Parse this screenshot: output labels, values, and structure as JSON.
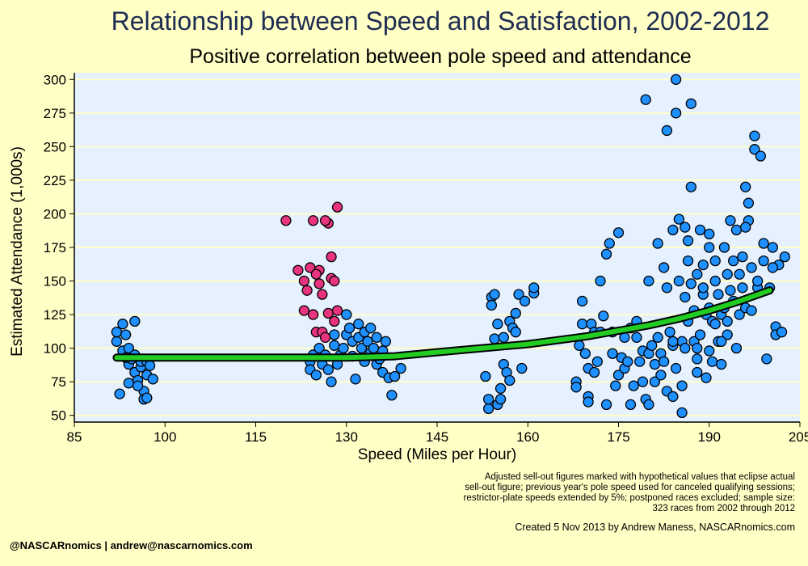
{
  "title": "Relationship between Speed and Satisfaction, 2002-2012",
  "subtitle": "Positive correlation between pole speed and attendance",
  "footer": {
    "note_lines": [
      "Adjusted sell-out figures marked with hypothetical values that eclipse actual",
      "sell-out figure; previous year's pole speed used for canceled qualifying sessions;",
      "restrictor-plate speeds extended by 5%; postponed races excluded; sample size:",
      "323 races from 2002 through 2012"
    ],
    "credit": "Created  5 Nov 2013 by Andrew Maness, NASCARnomics.com",
    "handle": "@NASCARnomics | andrew@nascarnomics.com"
  },
  "chart_data": {
    "type": "scatter",
    "xlabel": "Speed (Miles per Hour)",
    "ylabel": "Estimated Attendance (1,000s)",
    "xlim": [
      85,
      205
    ],
    "ylim": [
      45,
      305
    ],
    "x_ticks": [
      85,
      100,
      115,
      130,
      145,
      160,
      175,
      190,
      205
    ],
    "y_ticks": [
      50,
      75,
      100,
      125,
      150,
      175,
      200,
      225,
      250,
      275,
      300
    ],
    "grid": true,
    "colors": {
      "plot_bg": "#E6F1FF",
      "gridline": "#FFFFC6",
      "actual_point": "#1E90FF",
      "adjusted_point": "#E8337F",
      "trend": "#22CC22"
    },
    "series": [
      {
        "style": "actual",
        "points": [
          [
            92,
            105
          ],
          [
            92,
            112
          ],
          [
            92.5,
            66
          ],
          [
            93,
            118
          ],
          [
            93,
            98
          ],
          [
            93.5,
            110
          ],
          [
            94,
            100
          ],
          [
            94,
            88
          ],
          [
            94,
            74
          ],
          [
            94.5,
            92
          ],
          [
            95,
            120
          ],
          [
            95,
            95
          ],
          [
            95,
            82
          ],
          [
            95.5,
            76
          ],
          [
            96,
            86
          ],
          [
            96,
            90
          ],
          [
            96.5,
            68
          ],
          [
            96.5,
            62
          ],
          [
            97,
            80
          ],
          [
            97,
            63
          ],
          [
            97,
            90
          ],
          [
            97.5,
            87
          ],
          [
            98,
            77
          ],
          [
            93.5,
            93
          ],
          [
            95.5,
            72
          ],
          [
            124,
            90
          ],
          [
            124,
            84
          ],
          [
            124.5,
            95
          ],
          [
            125,
            80
          ],
          [
            125.5,
            100
          ],
          [
            126,
            88
          ],
          [
            126.5,
            95
          ],
          [
            127,
            84
          ],
          [
            127.5,
            75
          ],
          [
            128,
            102
          ],
          [
            128,
            110
          ],
          [
            128.5,
            88
          ],
          [
            129,
            95
          ],
          [
            129.5,
            100
          ],
          [
            130,
            110
          ],
          [
            130,
            125
          ],
          [
            130.5,
            115
          ],
          [
            131,
            94
          ],
          [
            131,
            105
          ],
          [
            131.5,
            77
          ],
          [
            132,
            108
          ],
          [
            132,
            118
          ],
          [
            132.5,
            100
          ],
          [
            133,
            90
          ],
          [
            133,
            112
          ],
          [
            133.5,
            105
          ],
          [
            134,
            97
          ],
          [
            134,
            115
          ],
          [
            134.5,
            100
          ],
          [
            135,
            88
          ],
          [
            135,
            108
          ],
          [
            135.5,
            92
          ],
          [
            136,
            98
          ],
          [
            136,
            82
          ],
          [
            136.5,
            105
          ],
          [
            137,
            78
          ],
          [
            137.5,
            65
          ],
          [
            138,
            79
          ],
          [
            139,
            85
          ],
          [
            153,
            79
          ],
          [
            153.5,
            55
          ],
          [
            153.5,
            62
          ],
          [
            154,
            138
          ],
          [
            154,
            132
          ],
          [
            154.5,
            140
          ],
          [
            154.5,
            107
          ],
          [
            155,
            118
          ],
          [
            155,
            58
          ],
          [
            155.5,
            62
          ],
          [
            155.5,
            70
          ],
          [
            156,
            108
          ],
          [
            156,
            88
          ],
          [
            156.5,
            82
          ],
          [
            157,
            120
          ],
          [
            157,
            76
          ],
          [
            157.5,
            115
          ],
          [
            158,
            126
          ],
          [
            158,
            112
          ],
          [
            158.5,
            140
          ],
          [
            159,
            85
          ],
          [
            159.5,
            135
          ],
          [
            161,
            141
          ],
          [
            161,
            145
          ],
          [
            168,
            75
          ],
          [
            168,
            71
          ],
          [
            168.5,
            102
          ],
          [
            169,
            135
          ],
          [
            169,
            118
          ],
          [
            169.5,
            96
          ],
          [
            170,
            85
          ],
          [
            170,
            64
          ],
          [
            170,
            60
          ],
          [
            170.5,
            118
          ],
          [
            171,
            112
          ],
          [
            171,
            82
          ],
          [
            171.5,
            90
          ],
          [
            172,
            112
          ],
          [
            172,
            150
          ],
          [
            172.5,
            124
          ],
          [
            173,
            58
          ],
          [
            173,
            170
          ],
          [
            173.5,
            178
          ],
          [
            174,
            112
          ],
          [
            174,
            96
          ],
          [
            174.5,
            72
          ],
          [
            175,
            80
          ],
          [
            175,
            186
          ],
          [
            175.5,
            93
          ],
          [
            176,
            108
          ],
          [
            176,
            85
          ],
          [
            176.5,
            90
          ],
          [
            177,
            58
          ],
          [
            177,
            115
          ],
          [
            177.5,
            72
          ],
          [
            178,
            108
          ],
          [
            178,
            120
          ],
          [
            178.5,
            90
          ],
          [
            179,
            98
          ],
          [
            179,
            75
          ],
          [
            179.5,
            62
          ],
          [
            179.5,
            285
          ],
          [
            180,
            58
          ],
          [
            180,
            96
          ],
          [
            180,
            150
          ],
          [
            180.5,
            102
          ],
          [
            181,
            88
          ],
          [
            181,
            75
          ],
          [
            181.5,
            108
          ],
          [
            181.5,
            178
          ],
          [
            182,
            80
          ],
          [
            182,
            96
          ],
          [
            182.5,
            160
          ],
          [
            182.5,
            90
          ],
          [
            183,
            145
          ],
          [
            183,
            68
          ],
          [
            183,
            262
          ],
          [
            183.5,
            112
          ],
          [
            184,
            102
          ],
          [
            184,
            64
          ],
          [
            184,
            188
          ],
          [
            184.5,
            85
          ],
          [
            184.5,
            275
          ],
          [
            184.5,
            300
          ],
          [
            185,
            196
          ],
          [
            185,
            150
          ],
          [
            185.5,
            105
          ],
          [
            185.5,
            52
          ],
          [
            185.5,
            72
          ],
          [
            186,
            190
          ],
          [
            186,
            138
          ],
          [
            186.5,
            120
          ],
          [
            186.5,
            180
          ],
          [
            187,
            148
          ],
          [
            187,
            220
          ],
          [
            187,
            282
          ],
          [
            187.5,
            105
          ],
          [
            187.5,
            128
          ],
          [
            188,
            155
          ],
          [
            188,
            92
          ],
          [
            188,
            82
          ],
          [
            188.5,
            188
          ],
          [
            188.5,
            110
          ],
          [
            189,
            140
          ],
          [
            189,
            162
          ],
          [
            189.5,
            78
          ],
          [
            189.5,
            125
          ],
          [
            190,
            98
          ],
          [
            190,
            175
          ],
          [
            190,
            185
          ],
          [
            190.5,
            120
          ],
          [
            190.5,
            90
          ],
          [
            191,
            150
          ],
          [
            191,
            165
          ],
          [
            191.5,
            105
          ],
          [
            191.5,
            140
          ],
          [
            192,
            125
          ],
          [
            192,
            88
          ],
          [
            192.5,
            175
          ],
          [
            192.5,
            130
          ],
          [
            193,
            155
          ],
          [
            193,
            110
          ],
          [
            193.5,
            195
          ],
          [
            193.5,
            143
          ],
          [
            194,
            165
          ],
          [
            194,
            135
          ],
          [
            194.5,
            100
          ],
          [
            194.5,
            188
          ],
          [
            195,
            125
          ],
          [
            195,
            155
          ],
          [
            195.5,
            145
          ],
          [
            195.5,
            168
          ],
          [
            196,
            220
          ],
          [
            196,
            130
          ],
          [
            196.5,
            195
          ],
          [
            196.5,
            208
          ],
          [
            197,
            160
          ],
          [
            197,
            128
          ],
          [
            197.5,
            258
          ],
          [
            197.5,
            248
          ],
          [
            198,
            145
          ],
          [
            198.5,
            243
          ],
          [
            199,
            178
          ],
          [
            199,
            165
          ],
          [
            199.5,
            92
          ],
          [
            200,
            145
          ],
          [
            200.5,
            175
          ],
          [
            201,
            116
          ],
          [
            201,
            110
          ],
          [
            201.5,
            162
          ],
          [
            202,
            112
          ],
          [
            202.5,
            168
          ],
          [
            186,
            100
          ],
          [
            184,
            105
          ],
          [
            188,
            100
          ],
          [
            191,
            118
          ],
          [
            192,
            105
          ],
          [
            193,
            120
          ],
          [
            186.5,
            165
          ],
          [
            189,
            145
          ],
          [
            190,
            130
          ],
          [
            196,
            190
          ],
          [
            198,
            150
          ],
          [
            200.5,
            160
          ]
        ]
      },
      {
        "style": "adjusted",
        "points": [
          [
            120,
            195
          ],
          [
            122,
            158
          ],
          [
            123,
            128
          ],
          [
            123,
            150
          ],
          [
            123.5,
            143
          ],
          [
            124,
            160
          ],
          [
            124.5,
            125
          ],
          [
            124.5,
            195
          ],
          [
            125,
            112
          ],
          [
            125.5,
            148
          ],
          [
            125.5,
            158
          ],
          [
            126,
            112
          ],
          [
            126,
            140
          ],
          [
            126.5,
            108
          ],
          [
            127,
            126
          ],
          [
            127,
            193
          ],
          [
            127.5,
            168
          ],
          [
            127.5,
            152
          ],
          [
            128,
            120
          ],
          [
            128,
            150
          ],
          [
            128.5,
            128
          ],
          [
            128.5,
            205
          ],
          [
            126.5,
            195
          ],
          [
            125,
            155
          ]
        ]
      }
    ],
    "trend_line": {
      "x": [
        92,
        100,
        110,
        120,
        130,
        138,
        145,
        150,
        155,
        160,
        165,
        170,
        175,
        180,
        185,
        190,
        195,
        200
      ],
      "y": [
        93,
        93,
        93,
        93,
        93,
        94,
        97,
        99,
        101,
        103,
        106,
        109,
        113,
        117,
        122,
        128,
        135,
        143
      ]
    }
  }
}
